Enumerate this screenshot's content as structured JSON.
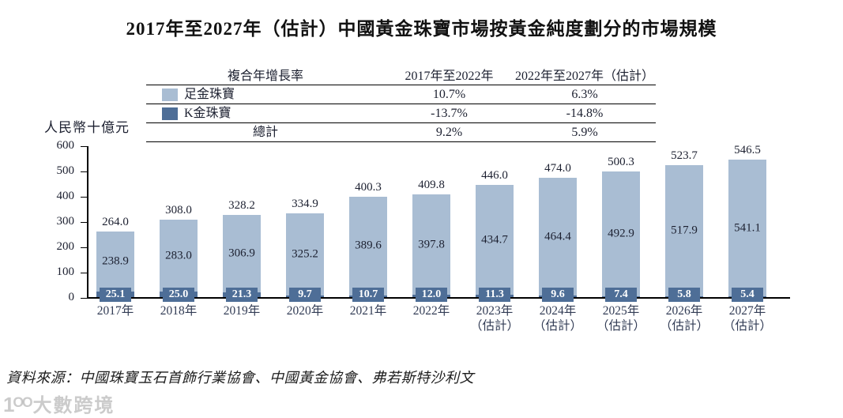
{
  "title": "2017年至2027年（估計）中國黃金珠寶市場按黃金純度劃分的市場規模",
  "cagr_table": {
    "header": [
      "複合年增長率",
      "2017年至2022年",
      "2022年至2027年（估計）"
    ],
    "rows": [
      {
        "label": "足金珠寶",
        "v1": "10.7%",
        "v2": "6.3%"
      },
      {
        "label": "K金珠寶",
        "v1": "-13.7%",
        "v2": "-14.8%"
      },
      {
        "label": "總計",
        "v1": "9.2%",
        "v2": "5.9%"
      }
    ]
  },
  "chart_data": {
    "type": "bar",
    "stacked": true,
    "grid": false,
    "legend_position": "table-top",
    "unit_label": "人民幣十億元",
    "ylim": [
      0,
      600
    ],
    "yticks": [
      0,
      100,
      200,
      300,
      400,
      500,
      600
    ],
    "categories": [
      {
        "label": "2017年",
        "sublabel": ""
      },
      {
        "label": "2018年",
        "sublabel": ""
      },
      {
        "label": "2019年",
        "sublabel": ""
      },
      {
        "label": "2020年",
        "sublabel": ""
      },
      {
        "label": "2021年",
        "sublabel": ""
      },
      {
        "label": "2022年",
        "sublabel": ""
      },
      {
        "label": "2023年",
        "sublabel": "（估計）"
      },
      {
        "label": "2024年",
        "sublabel": "（估計）"
      },
      {
        "label": "2025年",
        "sublabel": "（估計）"
      },
      {
        "label": "2026年",
        "sublabel": "（估計）"
      },
      {
        "label": "2027年",
        "sublabel": "（估計）"
      }
    ],
    "series": [
      {
        "name": "足金珠寶",
        "color": "#a9bdd3",
        "values": [
          "238.9",
          "283.0",
          "306.9",
          "325.2",
          "389.6",
          "397.8",
          "434.7",
          "464.4",
          "492.9",
          "517.9",
          "541.1"
        ]
      },
      {
        "name": "K金珠寶",
        "color": "#4e6e97",
        "values": [
          "25.1",
          "25.0",
          "21.3",
          "9.7",
          "10.7",
          "12.0",
          "11.3",
          "9.6",
          "7.4",
          "5.8",
          "5.4"
        ]
      }
    ],
    "totals": [
      "264.0",
      "308.0",
      "328.2",
      "334.9",
      "400.3",
      "409.8",
      "446.0",
      "474.0",
      "500.3",
      "523.7",
      "546.5"
    ]
  },
  "source_note": "資料來源：中國珠寶玉石首飾行業協會、中國黃金協會、弗若斯特沙利文",
  "watermark": {
    "logo": "1ᴼᴼ",
    "brand": "大數跨境"
  }
}
